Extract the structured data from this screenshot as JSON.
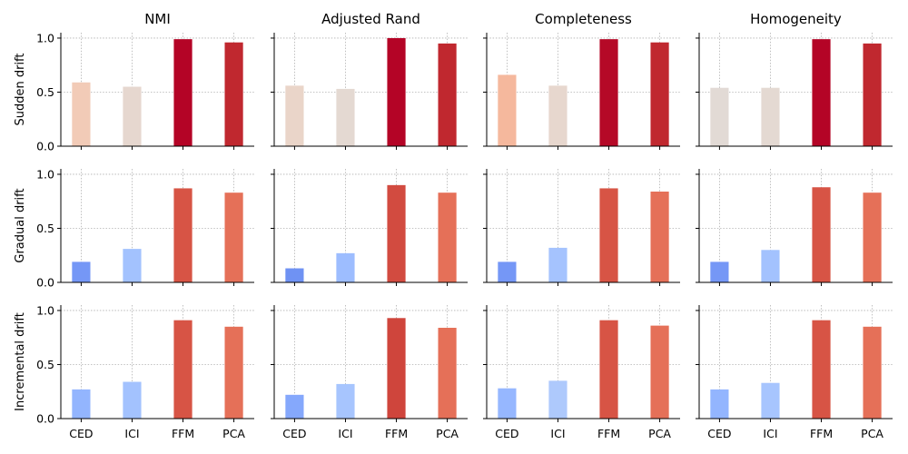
{
  "chart_data": {
    "type": "bar",
    "layout": "grid 3 rows x 4 columns",
    "categories": [
      "CED",
      "ICI",
      "FFM",
      "PCA"
    ],
    "metrics": [
      "NMI",
      "Adjusted Rand",
      "Completeness",
      "Homogeneity"
    ],
    "drift_types": [
      "Sudden drift",
      "Gradual drift",
      "Incremental drift"
    ],
    "ylim": [
      0,
      1.05
    ],
    "yticks": [
      "0.0",
      "0.5",
      "1.0"
    ],
    "grid": true,
    "colormap": "coolwarm",
    "values": [
      [
        [
          0.59,
          0.55,
          0.99,
          0.96
        ],
        [
          0.56,
          0.53,
          1.0,
          0.95
        ],
        [
          0.66,
          0.56,
          0.99,
          0.96
        ],
        [
          0.54,
          0.54,
          0.99,
          0.95
        ]
      ],
      [
        [
          0.19,
          0.31,
          0.87,
          0.83
        ],
        [
          0.13,
          0.27,
          0.9,
          0.83
        ],
        [
          0.19,
          0.32,
          0.87,
          0.84
        ],
        [
          0.19,
          0.3,
          0.88,
          0.83
        ]
      ],
      [
        [
          0.27,
          0.34,
          0.91,
          0.85
        ],
        [
          0.22,
          0.32,
          0.93,
          0.84
        ],
        [
          0.28,
          0.35,
          0.91,
          0.86
        ],
        [
          0.27,
          0.33,
          0.91,
          0.85
        ]
      ]
    ],
    "colors": [
      [
        [
          "#f2cbb7",
          "#e6d7cf",
          "#b40426",
          "#c0282f"
        ],
        [
          "#ead5c9",
          "#e4d9d2",
          "#b40426",
          "#c0282f"
        ],
        [
          "#f5b89d",
          "#e7d7ce",
          "#b50927",
          "#c0282f"
        ],
        [
          "#e2dad5",
          "#e4d9d2",
          "#b40426",
          "#c0282f"
        ]
      ],
      [
        [
          "#7597f6",
          "#a3c2fe",
          "#d75445",
          "#e57058"
        ],
        [
          "#6f92f3",
          "#9dbdff",
          "#d24b40",
          "#e57058"
        ],
        [
          "#7597f6",
          "#a5c3fe",
          "#d75445",
          "#e57058"
        ],
        [
          "#7597f6",
          "#a3c2fe",
          "#d75445",
          "#e57058"
        ]
      ],
      [
        [
          "#93b5fe",
          "#a3c2fe",
          "#d75445",
          "#e57058"
        ],
        [
          "#85a8fc",
          "#a7c5fe",
          "#cf453c",
          "#e57058"
        ],
        [
          "#96b7ff",
          "#aec9fc",
          "#d75445",
          "#e57058"
        ],
        [
          "#93b5fe",
          "#a7c5fe",
          "#d75445",
          "#e57058"
        ]
      ]
    ]
  }
}
